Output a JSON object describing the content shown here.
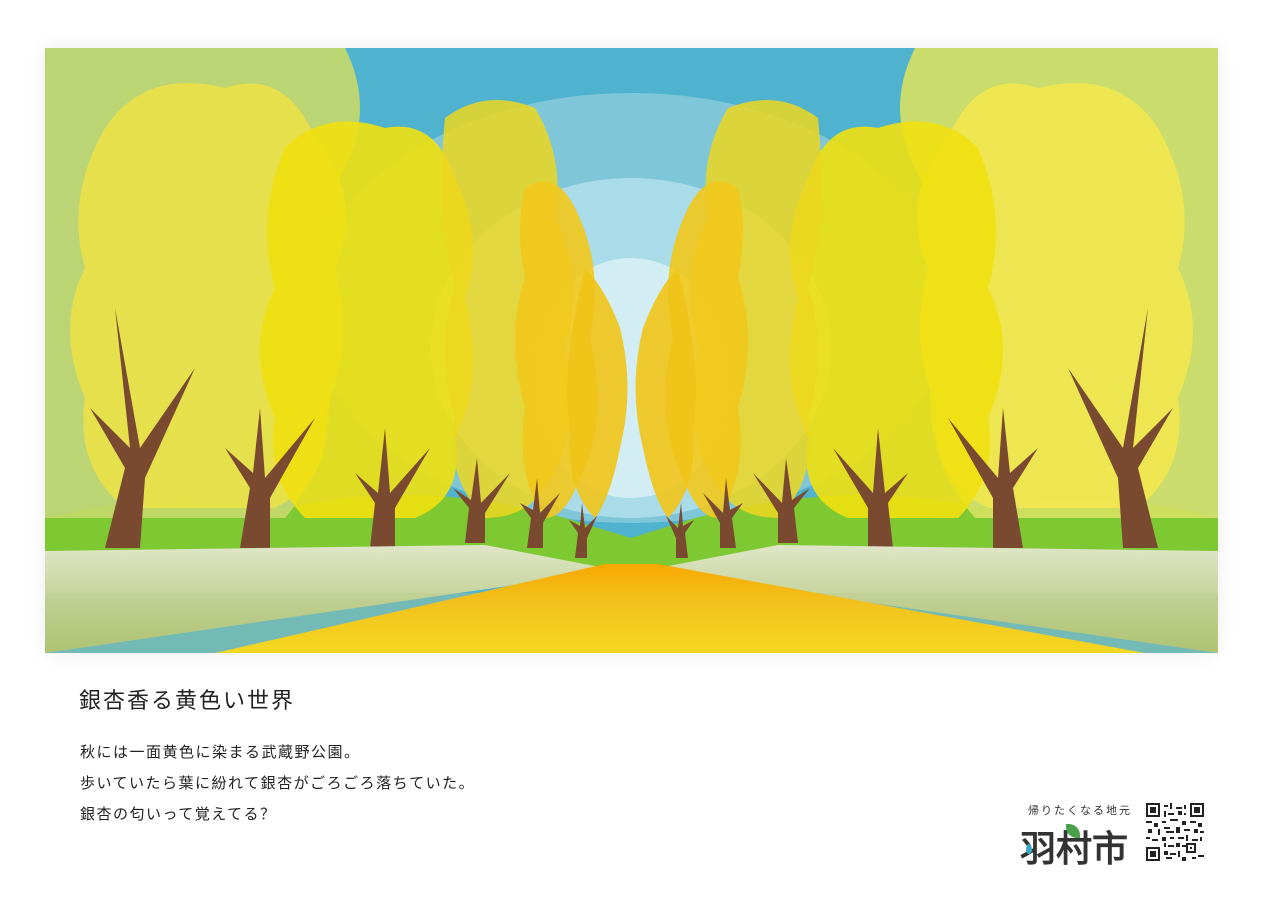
{
  "poster": {
    "title": "銀杏香る黄色い世界",
    "lines": [
      "秋には一面黄色に染まる武蔵野公園。",
      "歩いていたら葉に紛れて銀杏がごろごろ落ちていた。",
      "銀杏の匂いって覚えてる？"
    ]
  },
  "logo": {
    "tagline": "帰りたくなる地元",
    "city": "羽村市"
  },
  "colors": {
    "sky": "#4fb3cf",
    "ginkgo_yellow": "#f0e000",
    "trunk": "#7a4a30",
    "grass": "#7ec832",
    "path": "#f5d400"
  }
}
